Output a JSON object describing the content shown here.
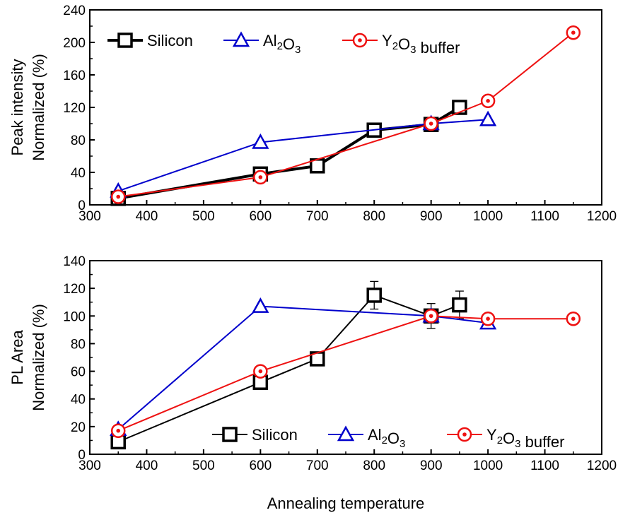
{
  "chart_data": [
    {
      "type": "line",
      "ylabel_lines": [
        "Peak intensity",
        "Normalized  (%)"
      ],
      "xlim": [
        300,
        1200
      ],
      "ylim": [
        0,
        240
      ],
      "xticks": [
        "300",
        "400",
        "500",
        "600",
        "700",
        "800",
        "900",
        "1000",
        "1100",
        "1200"
      ],
      "yticks": [
        "0",
        "40",
        "80",
        "120",
        "160",
        "200",
        "240"
      ],
      "legend_position": "top-left",
      "series": [
        {
          "name": "Silicon",
          "marker": "square",
          "color": "#000000",
          "x": [
            350,
            600,
            700,
            800,
            900,
            950
          ],
          "y": [
            8,
            38,
            48,
            92,
            99,
            120
          ]
        },
        {
          "name": "Al2O3",
          "marker": "triangle",
          "color": "#0000cc",
          "x": [
            350,
            600,
            900,
            1000
          ],
          "y": [
            17,
            77,
            100,
            105
          ]
        },
        {
          "name": "Y2O3 buffer",
          "marker": "circle-dot",
          "color": "#ee1111",
          "x": [
            350,
            600,
            900,
            1000,
            1150
          ],
          "y": [
            10,
            34,
            100,
            128,
            212
          ]
        }
      ]
    },
    {
      "type": "line",
      "ylabel_lines": [
        "PL Area",
        "Normalized (%)"
      ],
      "xlabel": "Annealing temperature",
      "xlim": [
        300,
        1200
      ],
      "ylim": [
        0,
        140
      ],
      "xticks": [
        "300",
        "400",
        "500",
        "600",
        "700",
        "800",
        "900",
        "1000",
        "1100",
        "1200"
      ],
      "yticks": [
        "0",
        "20",
        "40",
        "60",
        "80",
        "100",
        "120",
        "140"
      ],
      "legend_position": "bottom-right",
      "series": [
        {
          "name": "Silicon",
          "marker": "square",
          "color": "#000000",
          "x": [
            350,
            600,
            700,
            800,
            900,
            950
          ],
          "y": [
            9,
            52,
            69,
            115,
            100,
            108
          ],
          "err": [
            0,
            0,
            4,
            10,
            9,
            10
          ]
        },
        {
          "name": "Al2O3",
          "marker": "triangle",
          "color": "#0000cc",
          "x": [
            350,
            600,
            900,
            1000
          ],
          "y": [
            18,
            107,
            100,
            95
          ]
        },
        {
          "name": "Y2O3 buffer",
          "marker": "circle-dot",
          "color": "#ee1111",
          "x": [
            350,
            600,
            900,
            1000,
            1150
          ],
          "y": [
            17,
            60,
            100,
            98,
            98
          ]
        }
      ]
    }
  ]
}
